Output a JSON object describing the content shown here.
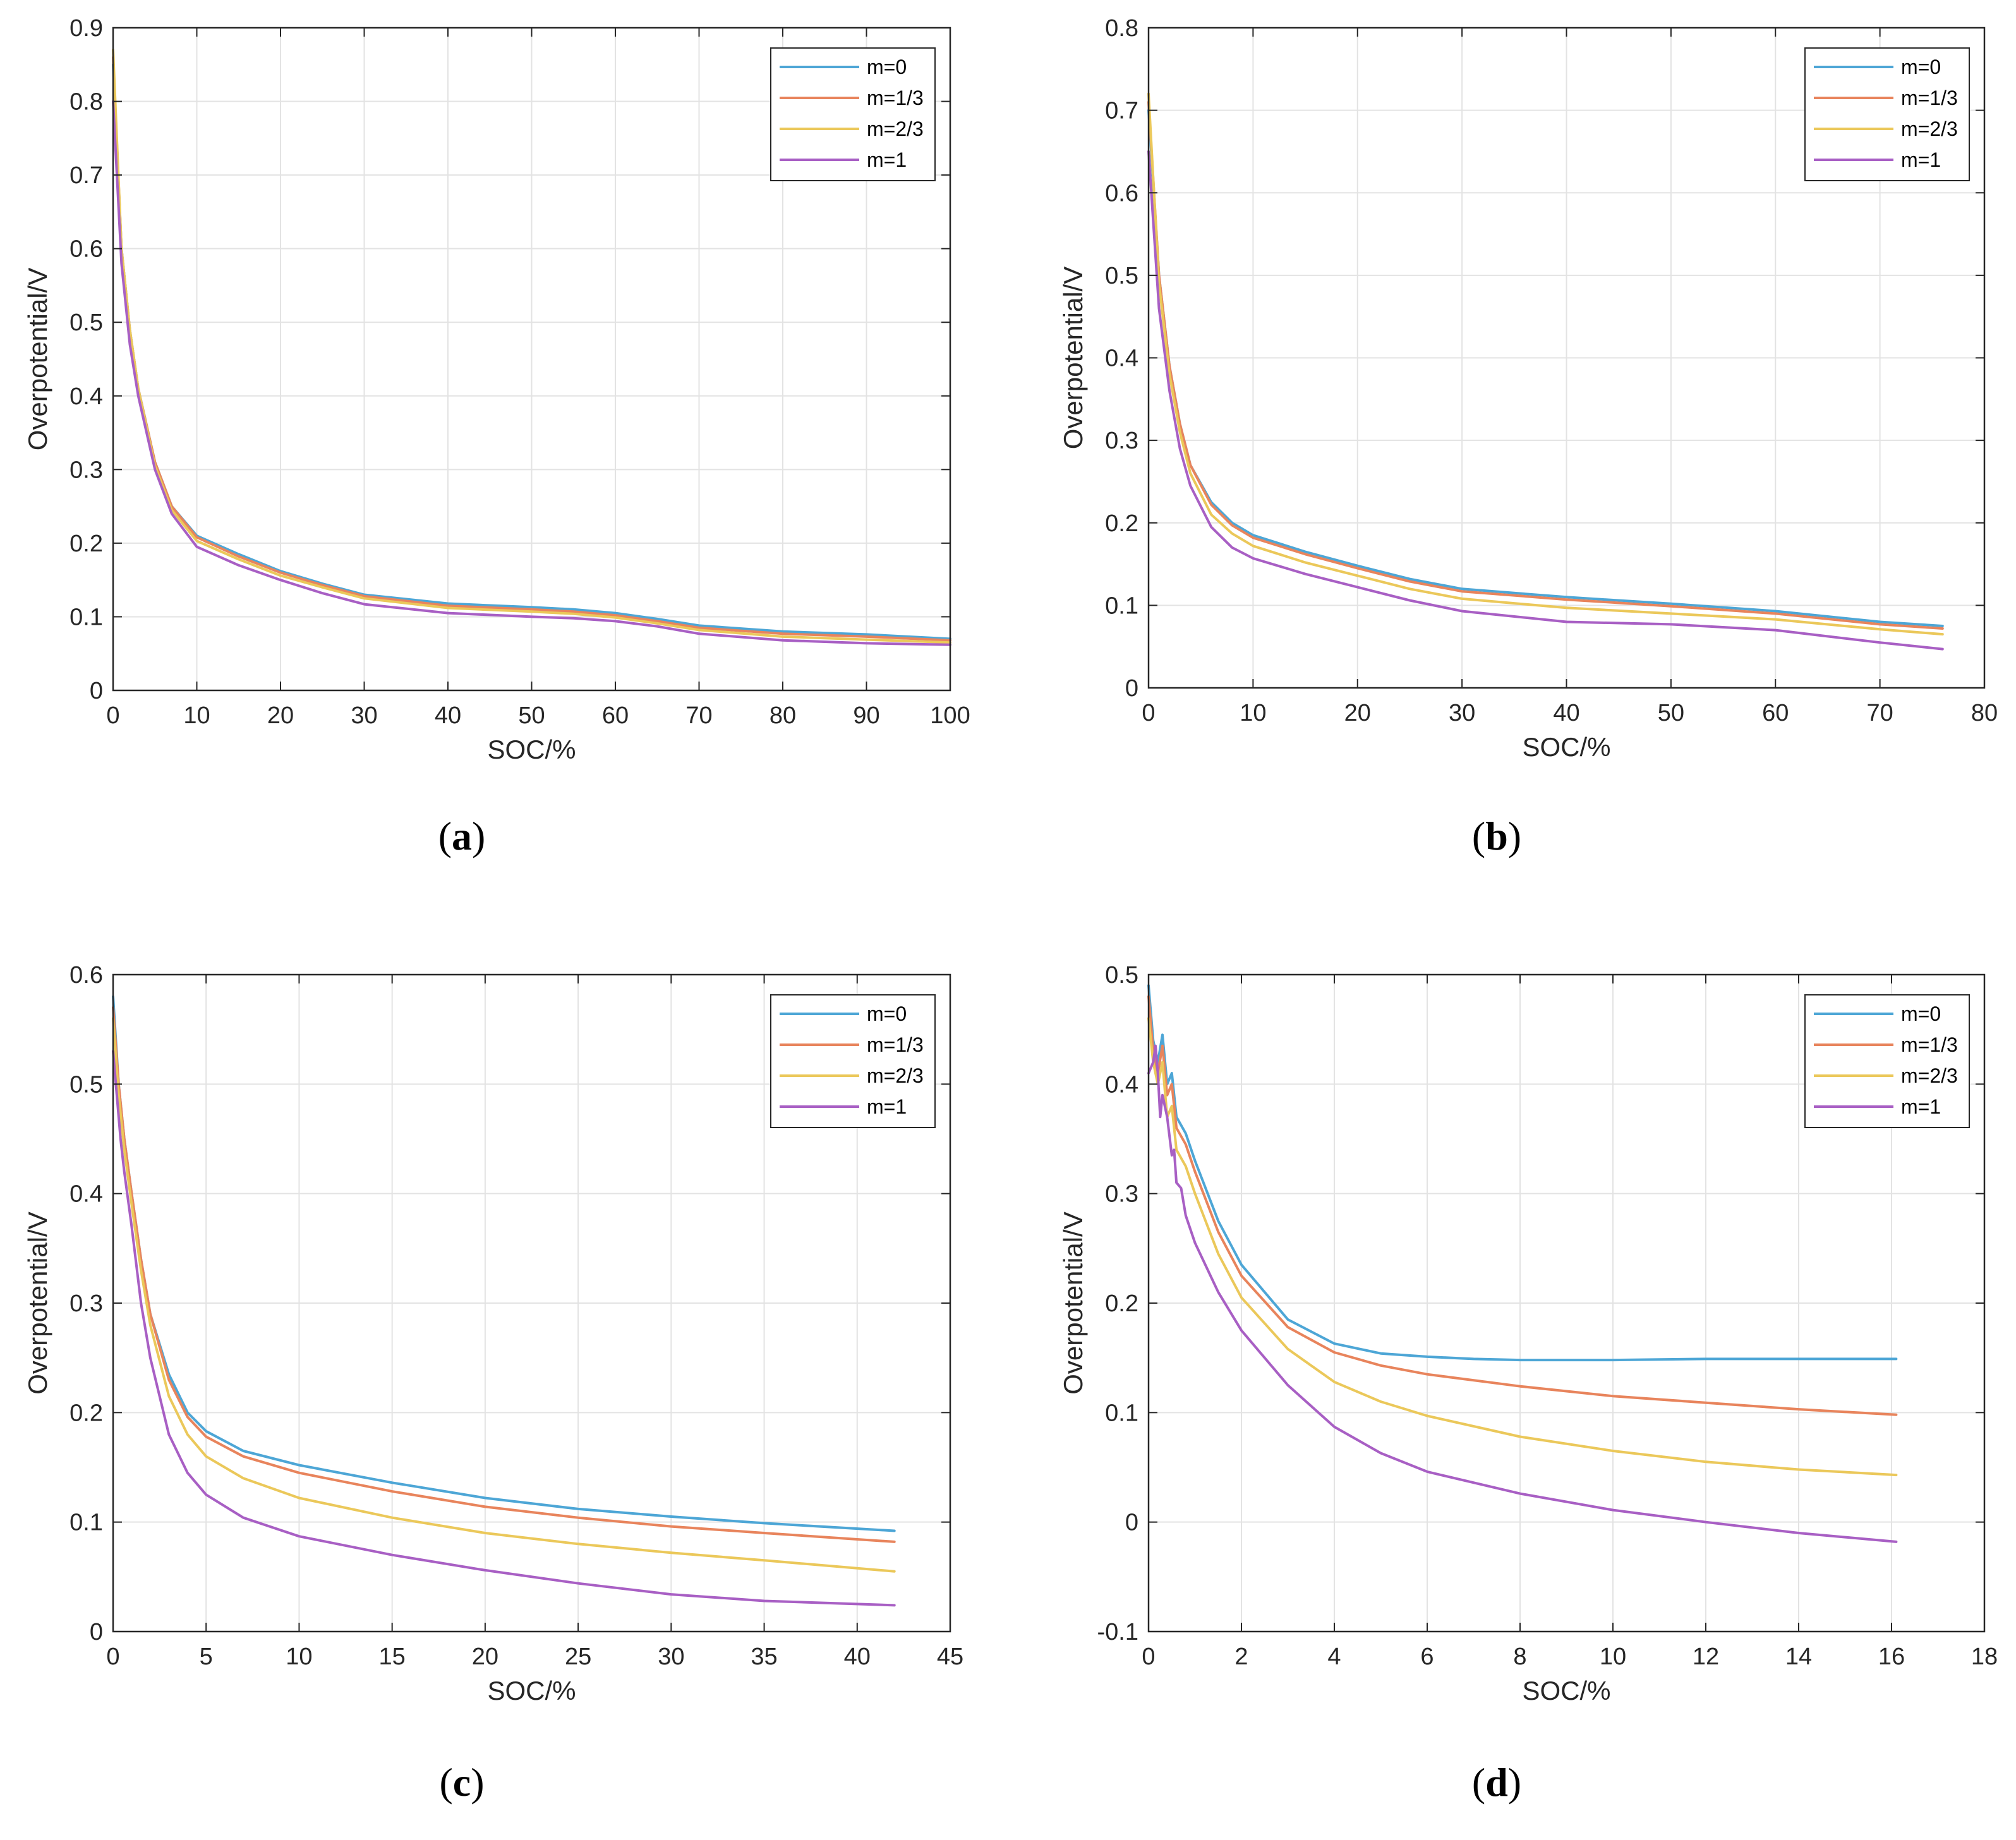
{
  "chart_data": [
    {
      "type": "line",
      "caption_letter": "a",
      "xlabel": "SOC/%",
      "ylabel": "Overpotential/V",
      "xlim": [
        0,
        100
      ],
      "ylim": [
        0,
        0.9
      ],
      "xticks": [
        0,
        10,
        20,
        30,
        40,
        50,
        60,
        70,
        80,
        90,
        100
      ],
      "yticks": [
        0,
        0.1,
        0.2,
        0.3,
        0.4,
        0.5,
        0.6,
        0.7,
        0.8,
        0.9
      ],
      "xtick_labels": [
        "0",
        "10",
        "20",
        "30",
        "40",
        "50",
        "60",
        "70",
        "80",
        "90",
        "100"
      ],
      "ytick_labels": [
        "0",
        "0.1",
        "0.2",
        "0.3",
        "0.4",
        "0.5",
        "0.6",
        "0.7",
        "0.8",
        "0.9"
      ],
      "grid": true,
      "legend_position": "top-right",
      "series": [
        {
          "name": "m=0",
          "color": "#4da6d6",
          "x": [
            0,
            1,
            2,
            3,
            5,
            7,
            10,
            15,
            20,
            25,
            30,
            40,
            50,
            55,
            60,
            65,
            70,
            80,
            90,
            100
          ],
          "y": [
            0.85,
            0.6,
            0.49,
            0.41,
            0.31,
            0.25,
            0.21,
            0.185,
            0.162,
            0.145,
            0.13,
            0.118,
            0.113,
            0.11,
            0.105,
            0.097,
            0.088,
            0.08,
            0.076,
            0.07
          ]
        },
        {
          "name": "m=1/3",
          "color": "#e8845c",
          "x": [
            0,
            1,
            2,
            3,
            5,
            7,
            10,
            15,
            20,
            25,
            30,
            40,
            50,
            55,
            60,
            65,
            70,
            80,
            90,
            100
          ],
          "y": [
            0.86,
            0.6,
            0.49,
            0.41,
            0.31,
            0.25,
            0.208,
            0.182,
            0.16,
            0.143,
            0.128,
            0.115,
            0.11,
            0.107,
            0.102,
            0.094,
            0.085,
            0.077,
            0.073,
            0.068
          ]
        },
        {
          "name": "m=2/3",
          "color": "#ebc85a",
          "x": [
            0,
            1,
            2,
            3,
            5,
            7,
            10,
            15,
            20,
            25,
            30,
            40,
            50,
            55,
            60,
            65,
            70,
            80,
            90,
            100
          ],
          "y": [
            0.87,
            0.6,
            0.49,
            0.41,
            0.305,
            0.245,
            0.203,
            0.178,
            0.156,
            0.14,
            0.125,
            0.112,
            0.107,
            0.104,
            0.099,
            0.091,
            0.082,
            0.073,
            0.069,
            0.065
          ]
        },
        {
          "name": "m=1",
          "color": "#a85fc4",
          "x": [
            0,
            1,
            2,
            3,
            5,
            7,
            10,
            15,
            20,
            25,
            30,
            40,
            50,
            55,
            60,
            65,
            70,
            80,
            90,
            100
          ],
          "y": [
            0.8,
            0.58,
            0.47,
            0.4,
            0.3,
            0.24,
            0.195,
            0.17,
            0.15,
            0.132,
            0.117,
            0.105,
            0.1,
            0.098,
            0.094,
            0.087,
            0.077,
            0.068,
            0.064,
            0.062
          ]
        }
      ]
    },
    {
      "type": "line",
      "caption_letter": "b",
      "xlabel": "SOC/%",
      "ylabel": "Overpotential/V",
      "xlim": [
        0,
        80
      ],
      "ylim": [
        0,
        0.8
      ],
      "xticks": [
        0,
        10,
        20,
        30,
        40,
        50,
        60,
        70,
        80
      ],
      "yticks": [
        0,
        0.1,
        0.2,
        0.3,
        0.4,
        0.5,
        0.6,
        0.7,
        0.8
      ],
      "xtick_labels": [
        "0",
        "10",
        "20",
        "30",
        "40",
        "50",
        "60",
        "70",
        "80"
      ],
      "ytick_labels": [
        "0",
        "0.1",
        "0.2",
        "0.3",
        "0.4",
        "0.5",
        "0.6",
        "0.7",
        "0.8"
      ],
      "grid": true,
      "legend_position": "top-right",
      "series": [
        {
          "name": "m=0",
          "color": "#4da6d6",
          "x": [
            0,
            1,
            2,
            3,
            4,
            6,
            8,
            10,
            15,
            20,
            25,
            30,
            40,
            50,
            60,
            70,
            76
          ],
          "y": [
            0.7,
            0.5,
            0.39,
            0.32,
            0.27,
            0.225,
            0.2,
            0.185,
            0.165,
            0.148,
            0.132,
            0.12,
            0.11,
            0.102,
            0.093,
            0.08,
            0.075
          ]
        },
        {
          "name": "m=1/3",
          "color": "#e8845c",
          "x": [
            0,
            1,
            2,
            3,
            4,
            6,
            8,
            10,
            15,
            20,
            25,
            30,
            40,
            50,
            60,
            70,
            76
          ],
          "y": [
            0.71,
            0.5,
            0.39,
            0.32,
            0.27,
            0.222,
            0.197,
            0.182,
            0.162,
            0.145,
            0.129,
            0.117,
            0.107,
            0.099,
            0.09,
            0.077,
            0.072
          ]
        },
        {
          "name": "m=2/3",
          "color": "#ebc85a",
          "x": [
            0,
            1,
            2,
            3,
            4,
            6,
            8,
            10,
            15,
            20,
            25,
            30,
            40,
            50,
            60,
            70,
            76
          ],
          "y": [
            0.72,
            0.49,
            0.38,
            0.31,
            0.26,
            0.21,
            0.187,
            0.172,
            0.152,
            0.136,
            0.12,
            0.108,
            0.097,
            0.09,
            0.083,
            0.071,
            0.065
          ]
        },
        {
          "name": "m=1",
          "color": "#a85fc4",
          "x": [
            0,
            1,
            2,
            3,
            4,
            6,
            8,
            10,
            15,
            20,
            25,
            30,
            40,
            50,
            60,
            70,
            76
          ],
          "y": [
            0.65,
            0.46,
            0.36,
            0.29,
            0.245,
            0.195,
            0.17,
            0.157,
            0.138,
            0.122,
            0.106,
            0.093,
            0.08,
            0.077,
            0.07,
            0.055,
            0.047
          ]
        }
      ]
    },
    {
      "type": "line",
      "caption_letter": "c",
      "xlabel": "SOC/%",
      "ylabel": "Overpotential/V",
      "xlim": [
        0,
        45
      ],
      "ylim": [
        0,
        0.6
      ],
      "xticks": [
        0,
        5,
        10,
        15,
        20,
        25,
        30,
        35,
        40,
        45
      ],
      "yticks": [
        0,
        0.1,
        0.2,
        0.3,
        0.4,
        0.5,
        0.6
      ],
      "xtick_labels": [
        "0",
        "5",
        "10",
        "15",
        "20",
        "25",
        "30",
        "35",
        "40",
        "45"
      ],
      "ytick_labels": [
        "0",
        "0.1",
        "0.2",
        "0.3",
        "0.4",
        "0.5",
        "0.6"
      ],
      "grid": true,
      "legend_position": "top-right",
      "series": [
        {
          "name": "m=0",
          "color": "#4da6d6",
          "x": [
            0,
            0.3,
            0.6,
            1,
            1.5,
            2,
            3,
            4,
            5,
            7,
            10,
            15,
            20,
            25,
            30,
            35,
            42
          ],
          "y": [
            0.58,
            0.5,
            0.45,
            0.4,
            0.34,
            0.29,
            0.235,
            0.2,
            0.183,
            0.165,
            0.152,
            0.136,
            0.122,
            0.112,
            0.105,
            0.099,
            0.092
          ]
        },
        {
          "name": "m=1/3",
          "color": "#e8845c",
          "x": [
            0,
            0.3,
            0.6,
            1,
            1.5,
            2,
            3,
            4,
            5,
            7,
            10,
            15,
            20,
            25,
            30,
            35,
            42
          ],
          "y": [
            0.57,
            0.5,
            0.45,
            0.4,
            0.34,
            0.29,
            0.23,
            0.196,
            0.178,
            0.16,
            0.145,
            0.128,
            0.114,
            0.104,
            0.096,
            0.09,
            0.082
          ]
        },
        {
          "name": "m=2/3",
          "color": "#ebc85a",
          "x": [
            0,
            0.3,
            0.6,
            1,
            1.5,
            2,
            3,
            4,
            5,
            7,
            10,
            15,
            20,
            25,
            30,
            35,
            42
          ],
          "y": [
            0.56,
            0.49,
            0.44,
            0.39,
            0.33,
            0.28,
            0.215,
            0.18,
            0.16,
            0.14,
            0.122,
            0.104,
            0.09,
            0.08,
            0.072,
            0.065,
            0.055
          ]
        },
        {
          "name": "m=1",
          "color": "#a85fc4",
          "x": [
            0,
            0.2,
            0.4,
            0.6,
            1,
            1.5,
            2,
            3,
            4,
            5,
            7,
            10,
            15,
            20,
            25,
            30,
            35,
            42
          ],
          "y": [
            0.53,
            0.49,
            0.45,
            0.42,
            0.37,
            0.3,
            0.25,
            0.18,
            0.145,
            0.125,
            0.104,
            0.087,
            0.07,
            0.056,
            0.044,
            0.034,
            0.028,
            0.024
          ]
        }
      ]
    },
    {
      "type": "line",
      "caption_letter": "d",
      "xlabel": "SOC/%",
      "ylabel": "Overpotential/V",
      "xlim": [
        0,
        18
      ],
      "ylim": [
        -0.1,
        0.5
      ],
      "xticks": [
        0,
        2,
        4,
        6,
        8,
        10,
        12,
        14,
        16,
        18
      ],
      "yticks": [
        -0.1,
        0,
        0.1,
        0.2,
        0.3,
        0.4,
        0.5
      ],
      "xtick_labels": [
        "0",
        "2",
        "4",
        "6",
        "8",
        "10",
        "12",
        "14",
        "16",
        "18"
      ],
      "ytick_labels": [
        "-0.1",
        "0",
        "0.1",
        "0.2",
        "0.3",
        "0.4",
        "0.5"
      ],
      "grid": true,
      "legend_position": "top-right",
      "series": [
        {
          "name": "m=0",
          "color": "#4da6d6",
          "x": [
            0,
            0.1,
            0.2,
            0.3,
            0.4,
            0.5,
            0.6,
            0.8,
            1,
            1.5,
            2,
            3,
            4,
            5,
            6,
            7,
            8,
            10,
            12,
            14,
            16.1
          ],
          "y": [
            0.49,
            0.44,
            0.42,
            0.445,
            0.4,
            0.41,
            0.37,
            0.355,
            0.33,
            0.275,
            0.235,
            0.185,
            0.163,
            0.154,
            0.151,
            0.149,
            0.148,
            0.148,
            0.149,
            0.149,
            0.149
          ]
        },
        {
          "name": "m=1/3",
          "color": "#e8845c",
          "x": [
            0,
            0.1,
            0.2,
            0.3,
            0.4,
            0.5,
            0.6,
            0.8,
            1,
            1.5,
            2,
            3,
            4,
            5,
            6,
            8,
            10,
            12,
            14,
            16.1
          ],
          "y": [
            0.48,
            0.43,
            0.41,
            0.435,
            0.39,
            0.4,
            0.36,
            0.345,
            0.32,
            0.265,
            0.225,
            0.178,
            0.155,
            0.143,
            0.135,
            0.124,
            0.115,
            0.109,
            0.103,
            0.098
          ]
        },
        {
          "name": "m=2/3",
          "color": "#ebc85a",
          "x": [
            0,
            0.1,
            0.2,
            0.3,
            0.4,
            0.5,
            0.6,
            0.8,
            1,
            1.5,
            2,
            3,
            4,
            5,
            6,
            8,
            10,
            12,
            14,
            16.1
          ],
          "y": [
            0.46,
            0.42,
            0.4,
            0.42,
            0.37,
            0.38,
            0.34,
            0.325,
            0.3,
            0.245,
            0.205,
            0.158,
            0.128,
            0.11,
            0.097,
            0.078,
            0.065,
            0.055,
            0.048,
            0.043
          ]
        },
        {
          "name": "m=1",
          "color": "#a85fc4",
          "x": [
            0,
            0.1,
            0.15,
            0.2,
            0.25,
            0.3,
            0.4,
            0.5,
            0.55,
            0.6,
            0.7,
            0.8,
            1,
            1.5,
            2,
            3,
            4,
            5,
            6,
            8,
            10,
            12,
            14,
            16.1
          ],
          "y": [
            0.41,
            0.42,
            0.435,
            0.41,
            0.37,
            0.39,
            0.37,
            0.335,
            0.34,
            0.31,
            0.305,
            0.28,
            0.255,
            0.21,
            0.175,
            0.125,
            0.087,
            0.063,
            0.046,
            0.026,
            0.011,
            0.0,
            -0.01,
            -0.018
          ]
        }
      ]
    }
  ]
}
